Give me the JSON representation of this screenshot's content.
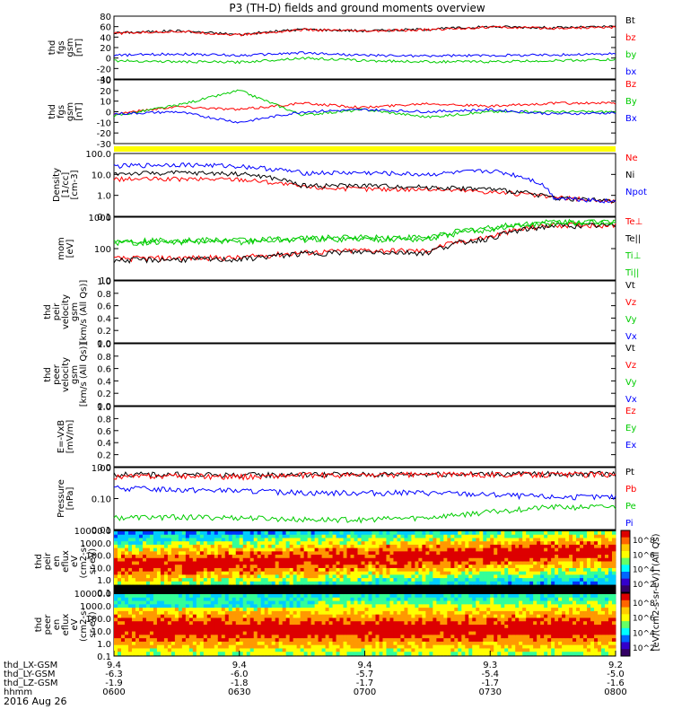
{
  "title": "P3 (TH-D) fields and ground moments overview",
  "date": "2016 Aug 26",
  "chart_data": [
    {
      "type": "line",
      "ylabel": [
        "thd",
        "fgs",
        "gsm",
        "[nT]"
      ],
      "ylim": [
        -40,
        80
      ],
      "ticks": [
        "80",
        "60",
        "40",
        "20",
        "0",
        "-20",
        "-40"
      ],
      "legend": [
        "Bt",
        "bz",
        "by",
        "bx"
      ],
      "colors": [
        "#000000",
        "#ff0000",
        "#00cc00",
        "#0000ff"
      ],
      "series": [
        {
          "x": [
            0,
            15,
            30,
            45,
            60,
            75,
            90,
            105,
            120
          ],
          "values": [
            48,
            52,
            45,
            55,
            52,
            55,
            60,
            58,
            60
          ]
        },
        {
          "x": [
            0,
            15,
            30,
            45,
            60,
            75,
            90,
            105,
            120
          ],
          "values": [
            47,
            51,
            44,
            54,
            51,
            54,
            59,
            57,
            59
          ]
        },
        {
          "x": [
            0,
            15,
            30,
            45,
            60,
            75,
            90,
            105,
            120
          ],
          "values": [
            -5,
            -7,
            -8,
            0,
            -5,
            -7,
            -7,
            -5,
            -3
          ]
        },
        {
          "x": [
            0,
            15,
            30,
            45,
            60,
            75,
            90,
            105,
            120
          ],
          "values": [
            5,
            8,
            5,
            10,
            5,
            4,
            5,
            6,
            8
          ]
        }
      ]
    },
    {
      "type": "line",
      "ylabel": [
        "thd",
        "fgs",
        "gsm",
        "[nT]"
      ],
      "ylim": [
        -30,
        30
      ],
      "ticks": [
        "30",
        "20",
        "10",
        "0",
        "-10",
        "-20",
        "-30"
      ],
      "legend": [
        "Bz",
        "By",
        "Bx"
      ],
      "colors": [
        "#ff0000",
        "#00cc00",
        "#0000ff"
      ],
      "series": [
        {
          "x": [
            0,
            15,
            30,
            45,
            60,
            75,
            90,
            105,
            120
          ],
          "values": [
            -2,
            5,
            2,
            8,
            4,
            8,
            5,
            8,
            8
          ]
        },
        {
          "x": [
            0,
            15,
            30,
            45,
            60,
            75,
            90,
            105,
            120
          ],
          "values": [
            -4,
            6,
            20,
            -3,
            2,
            -5,
            0,
            0,
            0
          ]
        },
        {
          "x": [
            0,
            15,
            30,
            45,
            60,
            75,
            90,
            105,
            120
          ],
          "values": [
            -2,
            0,
            -10,
            0,
            2,
            0,
            2,
            -2,
            -1
          ]
        }
      ]
    },
    {
      "type": "line",
      "log": true,
      "ylabel": [
        "Density",
        "[1/cc]",
        "[cm-3]"
      ],
      "ylim": [
        0.1,
        100
      ],
      "ticks": [
        "100.0",
        "10.0",
        "1.0",
        "0.1"
      ],
      "legend": [
        "Ne",
        "Ni",
        "Npot"
      ],
      "colors": [
        "#ff0000",
        "#000000",
        "#0000ff"
      ],
      "series": [
        {
          "x": [
            0,
            15,
            30,
            45,
            60,
            75,
            90,
            105,
            120
          ],
          "values": [
            6,
            6,
            6,
            2.5,
            2,
            2,
            1.5,
            0.8,
            0.5
          ]
        },
        {
          "x": [
            0,
            15,
            30,
            45,
            60,
            75,
            90,
            105,
            120
          ],
          "values": [
            11,
            12,
            11,
            3,
            3,
            2.5,
            2,
            0.8,
            0.5
          ]
        },
        {
          "x": [
            0,
            15,
            30,
            45,
            60,
            75,
            90,
            105,
            120
          ],
          "values": [
            25,
            30,
            25,
            12,
            12,
            10,
            15,
            0.8,
            0.5
          ]
        }
      ]
    },
    {
      "type": "line",
      "log": true,
      "ylabel": [
        "mom",
        "[eV]"
      ],
      "ylim": [
        10,
        3000
      ],
      "ticks": [
        "1000",
        "100",
        "10"
      ],
      "legend": [
        "Te⊥",
        "Te||",
        "Ti⊥",
        "Ti||"
      ],
      "colors": [
        "#ff0000",
        "#000000",
        "#00cc00",
        "#00cc00"
      ],
      "series": [
        {
          "x": [
            0,
            15,
            30,
            45,
            60,
            75,
            90,
            105,
            120
          ],
          "values": [
            70,
            75,
            75,
            120,
            150,
            140,
            500,
            1500,
            1500
          ]
        },
        {
          "x": [
            0,
            15,
            30,
            45,
            60,
            75,
            90,
            105,
            120
          ],
          "values": [
            60,
            65,
            65,
            110,
            130,
            120,
            450,
            1400,
            1400
          ]
        },
        {
          "x": [
            0,
            15,
            30,
            45,
            60,
            75,
            90,
            105,
            120
          ],
          "values": [
            300,
            320,
            320,
            400,
            420,
            400,
            1000,
            1800,
            1900
          ]
        },
        {
          "x": [
            0,
            15,
            30,
            45,
            60,
            75,
            90,
            105,
            120
          ],
          "values": [
            350,
            380,
            380,
            450,
            500,
            480,
            1200,
            2000,
            2000
          ]
        }
      ]
    },
    {
      "type": "line",
      "ylabel": [
        "thd",
        "peir",
        "velocity",
        "gsm",
        "[km/s (All Qs)]"
      ],
      "ylim": [
        0,
        1
      ],
      "ticks": [
        "1.0",
        "0.8",
        "0.6",
        "0.4",
        "0.2",
        "0.0"
      ],
      "legend": [
        "Vt",
        "Vz",
        "Vy",
        "Vx"
      ],
      "colors": [
        "#000000",
        "#ff0000",
        "#00cc00",
        "#0000ff"
      ],
      "series": []
    },
    {
      "type": "line",
      "ylabel": [
        "thd",
        "peer",
        "velocity",
        "gsm",
        "[km/s (All Qs)]"
      ],
      "ylim": [
        0,
        1
      ],
      "ticks": [
        "1.0",
        "0.8",
        "0.6",
        "0.4",
        "0.2",
        "0.0"
      ],
      "legend": [
        "Vt",
        "Vz",
        "Vy",
        "Vx"
      ],
      "colors": [
        "#000000",
        "#ff0000",
        "#00cc00",
        "#0000ff"
      ],
      "series": []
    },
    {
      "type": "line",
      "ylabel": [
        "E=-VxB",
        "[mV/m]"
      ],
      "ylim": [
        0,
        1
      ],
      "ticks": [
        "1.0",
        "0.8",
        "0.6",
        "0.4",
        "0.2",
        "0.0"
      ],
      "legend": [
        "Ez",
        "Ey",
        "Ex"
      ],
      "colors": [
        "#ff0000",
        "#00cc00",
        "#0000ff"
      ],
      "series": []
    },
    {
      "type": "line",
      "log": true,
      "ylabel": [
        "Pressure",
        "[nPa]"
      ],
      "ylim": [
        0.01,
        3
      ],
      "ticks": [
        "1.00",
        "0.10",
        "0.01"
      ],
      "legend": [
        "Pt",
        "Pb",
        "Pe",
        "Pi"
      ],
      "colors": [
        "#000000",
        "#ff0000",
        "#00cc00",
        "#0000ff"
      ],
      "series": [
        {
          "x": [
            0,
            15,
            30,
            45,
            60,
            75,
            90,
            105,
            120
          ],
          "values": [
            1.6,
            1.6,
            1.5,
            1.6,
            1.6,
            1.7,
            1.7,
            1.7,
            1.7
          ]
        },
        {
          "x": [
            0,
            15,
            30,
            45,
            60,
            75,
            90,
            105,
            120
          ],
          "values": [
            1.3,
            1.4,
            1.3,
            1.5,
            1.5,
            1.6,
            1.6,
            1.6,
            1.6
          ]
        },
        {
          "x": [
            0,
            15,
            30,
            45,
            60,
            75,
            90,
            105,
            120
          ],
          "values": [
            0.03,
            0.032,
            0.03,
            0.025,
            0.025,
            0.03,
            0.05,
            0.08,
            0.08
          ]
        },
        {
          "x": [
            0,
            15,
            30,
            45,
            60,
            75,
            90,
            105,
            120
          ],
          "values": [
            0.45,
            0.4,
            0.35,
            0.3,
            0.3,
            0.3,
            0.25,
            0.2,
            0.2
          ]
        }
      ]
    },
    {
      "type": "heatmap",
      "ylabel": [
        "thd",
        "peir",
        "en",
        "eflux",
        "eV",
        "(cm2-s-",
        "sr-eV)"
      ],
      "ticks": [
        "10000.0",
        "1000.0",
        "100.0",
        "10.0",
        "1.0",
        "0.1"
      ]
    },
    {
      "type": "heatmap",
      "ylabel": [
        "thd",
        "peer",
        "en",
        "eflux",
        "eV",
        "(cm2-s-",
        "sr-eV)"
      ],
      "ticks": [
        "10000.0",
        "1000.0",
        "100.0",
        "10.0",
        "1.0",
        "0.1"
      ]
    }
  ],
  "colorbar": {
    "label": "[eV/(cm2-s-sr-eV)] (All Qs)",
    "ticks": [
      "10^8",
      "10^6",
      "10^4",
      "10^2"
    ]
  },
  "xaxis": {
    "rows": [
      {
        "label": "thd_LX-GSM",
        "values": [
          "9.4",
          "9.4",
          "9.4",
          "9.3",
          "9.2"
        ]
      },
      {
        "label": "thd_LY-GSM",
        "values": [
          "-6.3",
          "-6.0",
          "-5.7",
          "-5.4",
          "-5.0"
        ]
      },
      {
        "label": "thd_LZ-GSM",
        "values": [
          "-1.9",
          "-1.8",
          "-1.7",
          "-1.7",
          "-1.6"
        ]
      },
      {
        "label": "hhmm",
        "values": [
          "0600",
          "0630",
          "0700",
          "0730",
          "0800"
        ]
      }
    ]
  }
}
